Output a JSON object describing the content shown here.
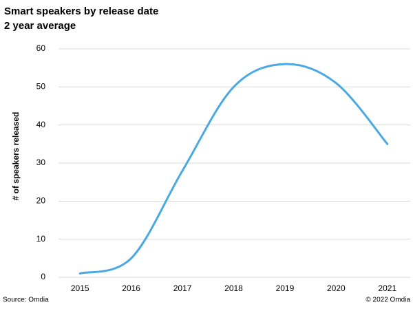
{
  "chart_data": {
    "type": "line",
    "title": "Smart speakers by release date",
    "subtitle": "2 year average",
    "y_label": "# of speakers released",
    "source": "Source: Omdia",
    "copyright": "© 2022 Omdia",
    "categories": [
      "2015",
      "2016",
      "2017",
      "2018",
      "2019",
      "2020",
      "2021"
    ],
    "series": [
      {
        "name": "Smart speakers",
        "color": "#4aa8e3",
        "values": [
          1,
          5,
          28,
          50,
          56,
          51,
          35
        ]
      }
    ],
    "ylim": [
      0,
      60
    ],
    "yticks": [
      0,
      10,
      20,
      30,
      40,
      50,
      60
    ],
    "grid": true
  }
}
